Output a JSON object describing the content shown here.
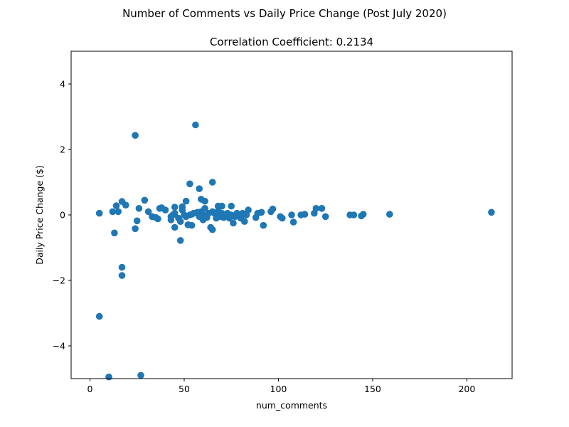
{
  "chart_data": {
    "type": "scatter",
    "suptitle": "Number of Comments vs Daily Price Change (Post July 2020)",
    "title": "Correlation Coefficient: 0.2134",
    "xlabel": "num_comments",
    "ylabel": "Daily Price Change ($)",
    "xlim": [
      -10,
      224
    ],
    "ylim": [
      -5,
      5
    ],
    "xticks": [
      0,
      50,
      100,
      150,
      200
    ],
    "xtick_labels": [
      "0",
      "50",
      "100",
      "150",
      "200"
    ],
    "yticks": [
      -4,
      -2,
      0,
      2,
      4
    ],
    "ytick_labels": [
      "−4",
      "−2",
      "0",
      "2",
      "4"
    ],
    "grid": false,
    "marker_color": "#1f77b4",
    "points": [
      [
        5,
        0.05
      ],
      [
        5,
        -3.1
      ],
      [
        10,
        -4.95
      ],
      [
        12,
        0.1
      ],
      [
        13,
        -0.55
      ],
      [
        14,
        0.28
      ],
      [
        15,
        0.1
      ],
      [
        17,
        0.41
      ],
      [
        17,
        -1.6
      ],
      [
        17,
        -1.85
      ],
      [
        19,
        0.3
      ],
      [
        24,
        2.43
      ],
      [
        24,
        -0.42
      ],
      [
        25,
        -0.18
      ],
      [
        26,
        0.2
      ],
      [
        27,
        -4.9
      ],
      [
        29,
        0.45
      ],
      [
        31,
        0.1
      ],
      [
        33,
        -0.05
      ],
      [
        35,
        -0.08
      ],
      [
        36,
        -0.12
      ],
      [
        37,
        0.2
      ],
      [
        38,
        0.22
      ],
      [
        40,
        0.15
      ],
      [
        43,
        -0.05
      ],
      [
        43,
        -0.15
      ],
      [
        44,
        0.0
      ],
      [
        45,
        0.05
      ],
      [
        45,
        0.24
      ],
      [
        45,
        -0.38
      ],
      [
        47,
        -0.1
      ],
      [
        48,
        -0.2
      ],
      [
        48,
        -0.78
      ],
      [
        49,
        0.25
      ],
      [
        49,
        0.15
      ],
      [
        50,
        0.0
      ],
      [
        51,
        -0.05
      ],
      [
        51,
        0.42
      ],
      [
        52,
        -0.3
      ],
      [
        53,
        0.95
      ],
      [
        53,
        0.0
      ],
      [
        54,
        -0.32
      ],
      [
        54,
        0.02
      ],
      [
        55,
        0.05
      ],
      [
        56,
        2.75
      ],
      [
        57,
        0.08
      ],
      [
        58,
        0.8
      ],
      [
        58,
        -0.05
      ],
      [
        59,
        0.1
      ],
      [
        59,
        0.48
      ],
      [
        60,
        0.0
      ],
      [
        60,
        -0.15
      ],
      [
        61,
        0.42
      ],
      [
        61,
        0.2
      ],
      [
        62,
        -0.08
      ],
      [
        63,
        0.05
      ],
      [
        64,
        -0.38
      ],
      [
        65,
        1.0
      ],
      [
        65,
        -0.45
      ],
      [
        65,
        0.1
      ],
      [
        66,
        0.05
      ],
      [
        67,
        -0.1
      ],
      [
        68,
        0.27
      ],
      [
        68,
        0.12
      ],
      [
        69,
        -0.05
      ],
      [
        70,
        0.27
      ],
      [
        70,
        0.05
      ],
      [
        71,
        -0.08
      ],
      [
        72,
        0.0
      ],
      [
        73,
        0.05
      ],
      [
        74,
        -0.1
      ],
      [
        75,
        0.27
      ],
      [
        75,
        0.0
      ],
      [
        76,
        -0.25
      ],
      [
        77,
        -0.05
      ],
      [
        78,
        0.05
      ],
      [
        79,
        0.0
      ],
      [
        80,
        -0.1
      ],
      [
        81,
        0.05
      ],
      [
        82,
        -0.2
      ],
      [
        83,
        0.0
      ],
      [
        84,
        0.15
      ],
      [
        88,
        -0.08
      ],
      [
        89,
        0.05
      ],
      [
        91,
        0.08
      ],
      [
        92,
        -0.32
      ],
      [
        96,
        0.1
      ],
      [
        97,
        0.18
      ],
      [
        101,
        -0.05
      ],
      [
        102,
        -0.1
      ],
      [
        107,
        0.0
      ],
      [
        108,
        -0.22
      ],
      [
        112,
        0.0
      ],
      [
        114,
        0.02
      ],
      [
        119,
        0.05
      ],
      [
        120,
        0.2
      ],
      [
        123,
        0.2
      ],
      [
        125,
        -0.05
      ],
      [
        138,
        0.0
      ],
      [
        140,
        0.0
      ],
      [
        144,
        -0.03
      ],
      [
        145,
        0.02
      ],
      [
        159,
        0.02
      ],
      [
        213,
        0.08
      ]
    ]
  }
}
